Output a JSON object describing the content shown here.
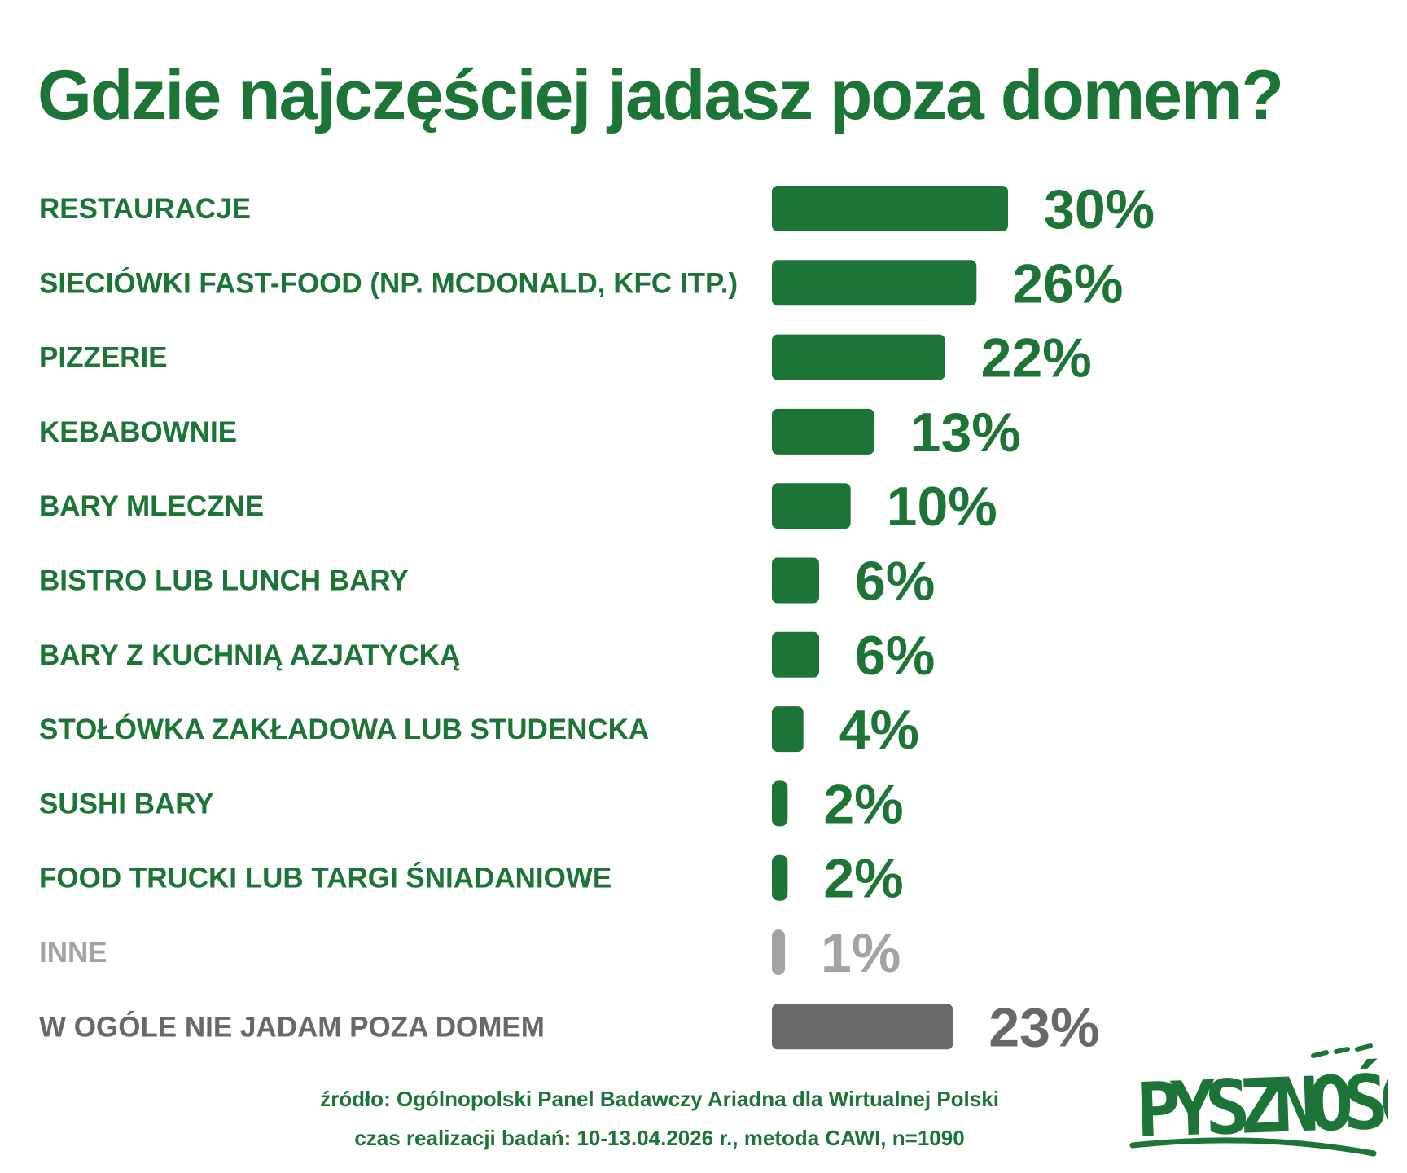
{
  "colors": {
    "brand": "#1c7536",
    "other": "#a3a3a3",
    "none": "#686868"
  },
  "logo": {
    "text": "PYSZNOŚCI"
  },
  "source": {
    "line1": "źródło: Ogólnopolski Panel Badawczy Ariadna dla Wirtualnej Polski",
    "line2": "czas realizacji badań: 10-13.04.2026 r., metoda CAWI, n=1090"
  },
  "chart_data": {
    "type": "bar",
    "orientation": "horizontal",
    "title": "Gdzie najczęściej jadasz poza domem?",
    "unit": "%",
    "categories": [
      "RESTAURACJE",
      "SIECIÓWKI FAST-FOOD (NP. MCDONALD, KFC ITP.)",
      "PIZZERIE",
      "KEBABOWNIE",
      "BARY MLECZNE",
      "BISTRO LUB LUNCH BARY",
      "BARY Z KUCHNIĄ AZJATYCKĄ",
      "STOŁÓWKA ZAKŁADOWA LUB STUDENCKA",
      "SUSHI BARY",
      "FOOD TRUCKI LUB TARGI ŚNIADANIOWE",
      "INNE",
      "W OGÓLE NIE JADAM POZA DOMEM"
    ],
    "values": [
      30,
      26,
      22,
      13,
      10,
      6,
      6,
      4,
      2,
      2,
      1,
      23
    ],
    "value_labels": [
      "30%",
      "26%",
      "22%",
      "13%",
      "10%",
      "6%",
      "6%",
      "4%",
      "2%",
      "2%",
      "1%",
      "23%"
    ],
    "bar_colors": [
      "#1c7536",
      "#1c7536",
      "#1c7536",
      "#1c7536",
      "#1c7536",
      "#1c7536",
      "#1c7536",
      "#1c7536",
      "#1c7536",
      "#1c7536",
      "#a3a3a3",
      "#686868"
    ],
    "xlim": [
      0,
      30
    ],
    "grid": false,
    "legend": "none"
  }
}
